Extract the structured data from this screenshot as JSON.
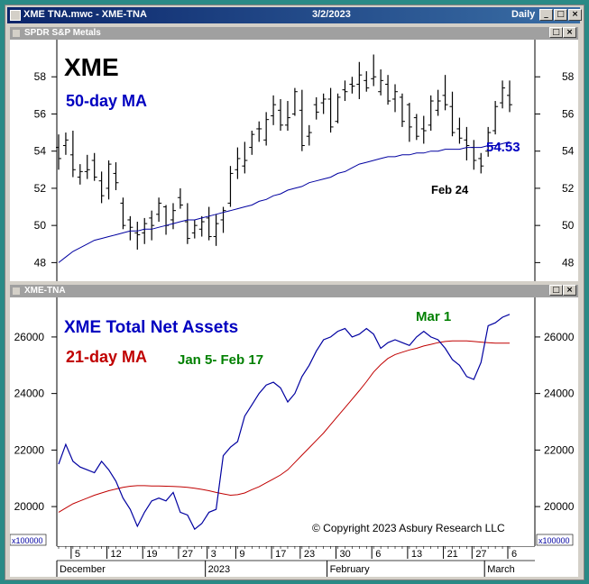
{
  "window": {
    "title": "XME TNA.mwc - XME-TNA",
    "date": "3/2/2023",
    "period": "Daily"
  },
  "top_pane": {
    "title": "SPDR S&P Metals",
    "ticker": "XME",
    "ma_label": "50-day MA",
    "last_value": "54.53",
    "annotation": "Feb 24"
  },
  "bottom_pane": {
    "title": "XME-TNA",
    "label": "XME Total Net Assets",
    "ma_label": "21-day MA",
    "annotation_range": "Jan 5- Feb 17",
    "annotation_date": "Mar 1",
    "copyright": "© Copyright 2023 Asbury Research LLC",
    "multiplier": "x100000"
  },
  "colors": {
    "price": "#000000",
    "ma50": "#0000a0",
    "tna": "#0000a0",
    "ma21": "#c00000",
    "annotation_green": "#008000",
    "label_blue": "#0000c0",
    "label_red": "#c00000"
  },
  "x_axis": {
    "day_ticks": [
      "5",
      "12",
      "19",
      "27",
      "3",
      "9",
      "17",
      "23",
      "30",
      "6",
      "13",
      "21",
      "27",
      "6"
    ],
    "months": [
      "December",
      "2023",
      "February",
      "March"
    ]
  },
  "chart_data": [
    {
      "type": "ohlc",
      "title": "XME",
      "yticks": [
        48,
        50,
        52,
        54,
        56,
        58
      ],
      "ylim": [
        47,
        60
      ],
      "series": [
        {
          "name": "XME",
          "values": [
            [
              54.2,
              54.9,
              53.0,
              53.6
            ],
            [
              54.3,
              55.0,
              53.8,
              54.6
            ],
            [
              53.8,
              55.1,
              52.6,
              53.0
            ],
            [
              52.6,
              53.3,
              52.2,
              52.9
            ],
            [
              52.9,
              53.8,
              52.5,
              53.0
            ],
            [
              53.5,
              53.9,
              52.4,
              52.6
            ],
            [
              52.4,
              52.9,
              51.2,
              51.6
            ],
            [
              52.0,
              53.5,
              51.4,
              53.3
            ],
            [
              52.8,
              53.4,
              51.9,
              52.3
            ],
            [
              51.2,
              51.5,
              49.8,
              50.0
            ],
            [
              50.3,
              50.5,
              49.2,
              49.9
            ],
            [
              49.6,
              50.2,
              48.7,
              49.5
            ],
            [
              49.6,
              50.4,
              49.0,
              50.1
            ],
            [
              50.4,
              50.8,
              49.2,
              50.0
            ],
            [
              50.6,
              51.5,
              50.2,
              51.2
            ],
            [
              51.0,
              51.1,
              49.5,
              50.0
            ],
            [
              50.3,
              51.2,
              49.8,
              50.8
            ],
            [
              51.5,
              52.0,
              50.9,
              51.1
            ],
            [
              50.2,
              51.2,
              49.0,
              49.3
            ],
            [
              49.6,
              50.3,
              49.3,
              50.0
            ],
            [
              49.8,
              50.5,
              49.4,
              50.2
            ],
            [
              50.4,
              51.0,
              49.2,
              49.4
            ],
            [
              49.4,
              50.6,
              48.9,
              50.1
            ],
            [
              50.3,
              51.0,
              49.6,
              50.8
            ],
            [
              51.2,
              53.2,
              51.0,
              52.8
            ],
            [
              53.0,
              54.2,
              52.5,
              53.6
            ],
            [
              53.2,
              54.5,
              52.8,
              53.5
            ],
            [
              54.2,
              55.1,
              53.8,
              54.9
            ],
            [
              55.2,
              55.6,
              54.5,
              55.2
            ],
            [
              54.6,
              56.1,
              54.3,
              55.7
            ],
            [
              55.9,
              57.0,
              55.4,
              56.5
            ],
            [
              56.2,
              56.8,
              55.1,
              55.4
            ],
            [
              55.4,
              56.7,
              55.1,
              55.8
            ],
            [
              56.0,
              57.4,
              55.9,
              57.2
            ],
            [
              56.2,
              57.3,
              54.0,
              54.3
            ],
            [
              54.8,
              55.4,
              54.3,
              55.0
            ],
            [
              56.5,
              56.9,
              55.7,
              56.1
            ],
            [
              56.6,
              57.1,
              56.0,
              56.8
            ],
            [
              56.8,
              57.4,
              55.0,
              55.3
            ],
            [
              55.6,
              57.1,
              55.5,
              56.9
            ],
            [
              57.3,
              57.8,
              56.7,
              57.2
            ],
            [
              57.6,
              58.0,
              57.1,
              57.5
            ],
            [
              57.6,
              58.8,
              56.8,
              58.1
            ],
            [
              57.8,
              58.3,
              57.2,
              57.4
            ],
            [
              57.9,
              59.2,
              57.5,
              58.0
            ],
            [
              57.2,
              58.4,
              57.0,
              57.8
            ],
            [
              57.6,
              58.1,
              56.5,
              56.7
            ],
            [
              56.8,
              57.6,
              56.1,
              57.2
            ],
            [
              56.9,
              57.1,
              55.3,
              55.6
            ],
            [
              56.5,
              56.6,
              54.5,
              55.3
            ],
            [
              55.8,
              56.0,
              54.6,
              54.8
            ],
            [
              55.2,
              55.9,
              54.4,
              55.1
            ],
            [
              55.4,
              57.0,
              55.1,
              56.7
            ],
            [
              56.2,
              57.3,
              55.9,
              56.7
            ],
            [
              57.0,
              58.1,
              56.2,
              56.5
            ],
            [
              56.4,
              57.2,
              54.8,
              55.0
            ],
            [
              55.2,
              55.8,
              54.4,
              54.7
            ],
            [
              54.6,
              55.3,
              53.5,
              54.3
            ],
            [
              54.2,
              54.6,
              53.0,
              53.5
            ],
            [
              53.6,
              53.9,
              52.8,
              53.2
            ],
            [
              54.0,
              55.3,
              53.7,
              55.0
            ],
            [
              55.1,
              56.7,
              54.9,
              56.4
            ],
            [
              56.6,
              57.8,
              56.3,
              57.4
            ],
            [
              57.0,
              57.8,
              56.1,
              56.5
            ]
          ]
        },
        {
          "name": "50-day MA",
          "values": [
            48.0,
            48.3,
            48.6,
            48.8,
            49.0,
            49.2,
            49.3,
            49.4,
            49.5,
            49.6,
            49.7,
            49.7,
            49.8,
            49.8,
            49.9,
            50.0,
            50.1,
            50.2,
            50.3,
            50.3,
            50.4,
            50.5,
            50.6,
            50.7,
            50.8,
            50.9,
            51.0,
            51.1,
            51.3,
            51.4,
            51.6,
            51.7,
            51.9,
            52.0,
            52.1,
            52.3,
            52.4,
            52.5,
            52.6,
            52.8,
            52.9,
            53.1,
            53.3,
            53.4,
            53.5,
            53.6,
            53.7,
            53.7,
            53.8,
            53.8,
            53.9,
            53.9,
            54.0,
            54.0,
            54.1,
            54.1,
            54.1,
            54.2,
            54.2,
            54.2,
            54.3,
            54.3,
            54.4,
            54.5
          ]
        }
      ]
    },
    {
      "type": "line",
      "title": "XME Total Net Assets",
      "yticks": [
        20000,
        22000,
        24000,
        26000
      ],
      "ylim": [
        18600,
        27400
      ],
      "series": [
        {
          "name": "XME Total Net Assets",
          "values": [
            21500,
            22200,
            21600,
            21400,
            21300,
            21200,
            21600,
            21300,
            20900,
            20300,
            19900,
            19300,
            19800,
            20200,
            20300,
            20200,
            20500,
            19800,
            19700,
            19200,
            19400,
            19800,
            19900,
            21800,
            22100,
            22300,
            23200,
            23600,
            24000,
            24300,
            24400,
            24200,
            23700,
            24000,
            24600,
            25000,
            25500,
            25900,
            26000,
            26200,
            26300,
            26000,
            26100,
            26300,
            26100,
            25600,
            25800,
            25900,
            25800,
            25700,
            26000,
            26200,
            26000,
            25900,
            25600,
            25200,
            25000,
            24600,
            24500,
            25100,
            26400,
            26500,
            26700,
            26800
          ]
        },
        {
          "name": "21-day MA",
          "values": [
            19800,
            19950,
            20100,
            20200,
            20300,
            20400,
            20480,
            20560,
            20620,
            20680,
            20720,
            20740,
            20740,
            20730,
            20730,
            20720,
            20710,
            20700,
            20680,
            20650,
            20610,
            20560,
            20500,
            20450,
            20400,
            20420,
            20480,
            20600,
            20700,
            20840,
            20980,
            21120,
            21300,
            21560,
            21820,
            22080,
            22340,
            22600,
            22900,
            23200,
            23500,
            23800,
            24100,
            24420,
            24760,
            25020,
            25240,
            25380,
            25460,
            25540,
            25600,
            25680,
            25740,
            25800,
            25840,
            25860,
            25860,
            25860,
            25840,
            25820,
            25800,
            25780,
            25780,
            25780
          ]
        }
      ]
    }
  ]
}
